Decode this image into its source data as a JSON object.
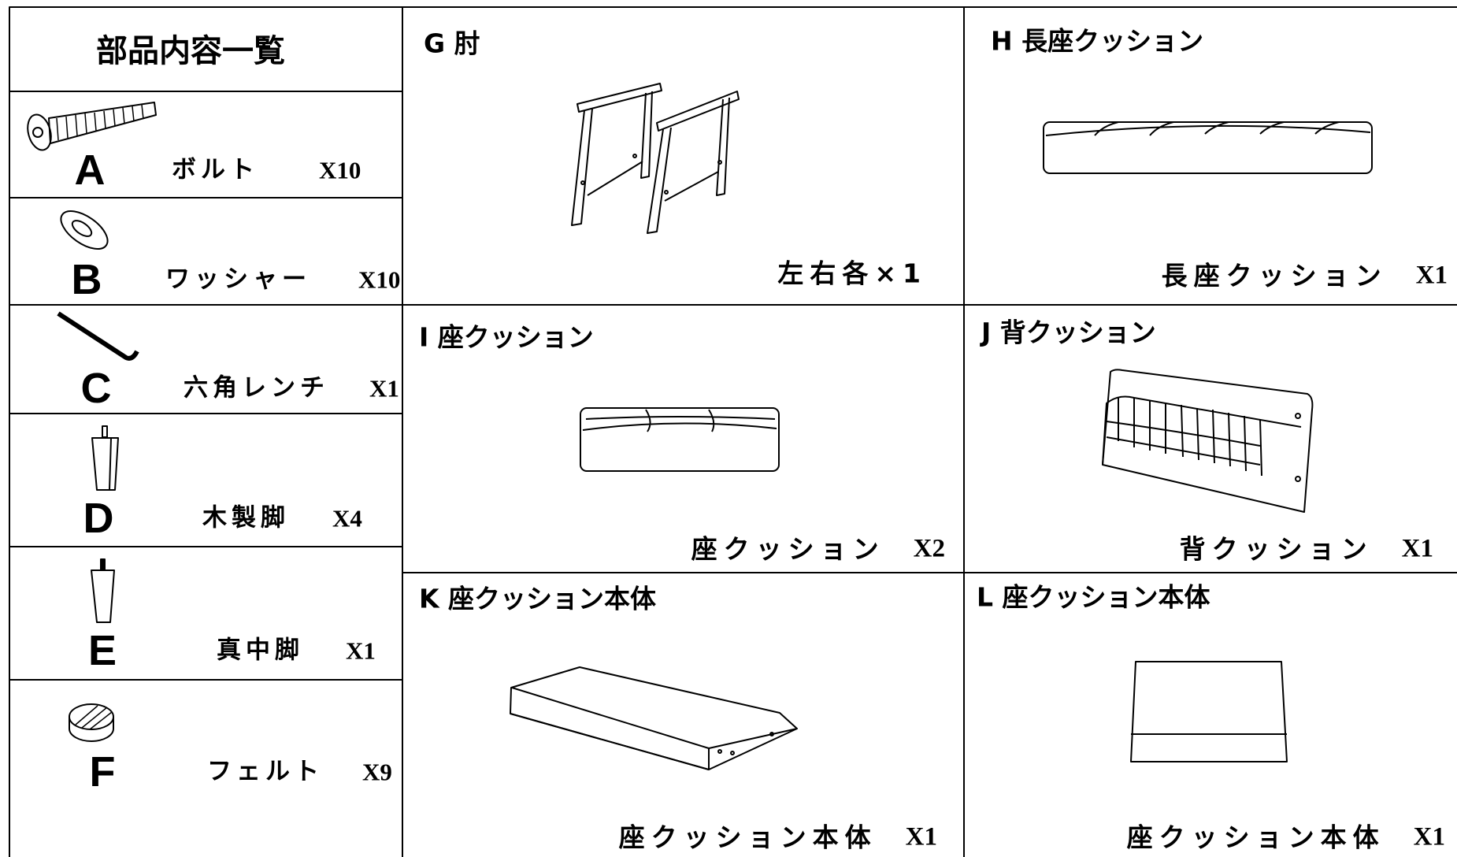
{
  "title": "部品内容一覧",
  "parts": [
    {
      "letter": "A",
      "name": "ボルト",
      "quantity": "X10"
    },
    {
      "letter": "B",
      "name": "ワッシャー",
      "quantity": "X10"
    },
    {
      "letter": "C",
      "name": "六角レンチ",
      "quantity": "X1"
    },
    {
      "letter": "D",
      "name": "木製脚",
      "quantity": "X4"
    },
    {
      "letter": "E",
      "name": "真中脚",
      "quantity": "X1"
    },
    {
      "letter": "F",
      "name": "フェルト",
      "quantity": "X9"
    }
  ],
  "panels": [
    {
      "header": "G 肘",
      "caption": "左右各×1"
    },
    {
      "header": "H 長座クッション",
      "caption": "長座クッション",
      "quantity": "X1"
    },
    {
      "header": "I 座クッション",
      "caption": "座クッション",
      "quantity": "X2"
    },
    {
      "header": "J 背クッション",
      "caption": "背クッション",
      "quantity": "X1"
    },
    {
      "header": "K 座クッション本体",
      "caption": "座クッション本体",
      "quantity": "X1"
    },
    {
      "header": "L 座クッション本体",
      "caption": "座クッション本体",
      "quantity": "X1"
    }
  ]
}
